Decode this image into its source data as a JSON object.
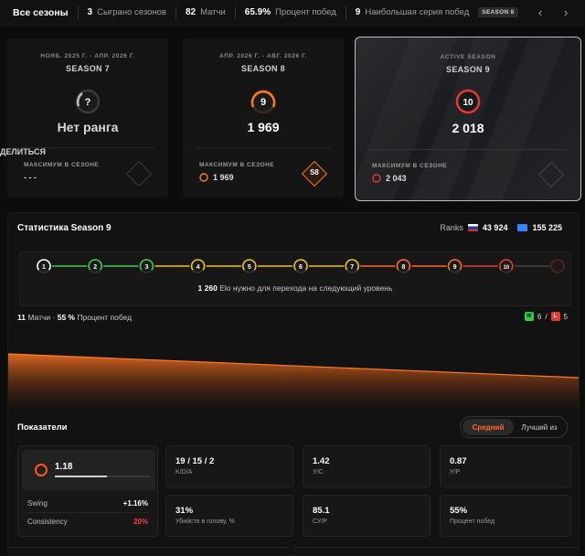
{
  "topbar": {
    "all_seasons": "Все сезоны",
    "stats": [
      {
        "value": "3",
        "label": "Сыграно сезонов"
      },
      {
        "value": "82",
        "label": "Матчи"
      },
      {
        "value": "65.9%",
        "label": "Процент побед"
      },
      {
        "value": "9",
        "label": "Наибольшая серия побед"
      }
    ],
    "season_badge": "SEASON 8",
    "prev_icon": "chevron-left-icon",
    "next_icon": "chevron-right-icon"
  },
  "share_label": "ДЕЛИТЬСЯ",
  "seasons": [
    {
      "dates": "НОЯБ. 2025 Г. - АПР. 2026 Г.",
      "name": "SEASON 7",
      "level": "?",
      "elo": "",
      "no_rank": "Нет ранга",
      "max_label": "МАКСИМУМ В СЕЗОНЕ",
      "max_value": "- - -",
      "color": "#bdbdbd"
    },
    {
      "dates": "АПР. 2026 Г. - АВГ. 2026 Г.",
      "name": "SEASON 8",
      "level": "9",
      "elo": "1 969",
      "max_label": "МАКСИМУМ В СЕЗОНЕ",
      "max_level": "9",
      "max_value": "1 969",
      "color": "#ff7a1a",
      "badge": "S8"
    },
    {
      "tag": "ACTIVE SEASON",
      "name": "SEASON 9",
      "level": "10",
      "elo": "2 018",
      "max_label": "МАКСИМУМ В СЕЗОНЕ",
      "max_level": "10",
      "max_value": "2 043",
      "color": "#e53935"
    }
  ],
  "panel": {
    "title": "Статистика Season 9",
    "ranks_label": "Ranks",
    "rank_country": "43 924",
    "rank_world": "155 225",
    "levels": [
      "1",
      "2",
      "3",
      "4",
      "5",
      "6",
      "7",
      "8",
      "9",
      "10"
    ],
    "elo_needed_value": "1 260",
    "elo_needed_text": "Elo нужно для перехода на следующий уровень",
    "matches_value": "11",
    "matches_label": "Матчи",
    "winrate_value": "55 %",
    "winrate_label": "Процент побед",
    "wins_badge": "W",
    "wins": "6",
    "losses_badge": "L",
    "losses": "5"
  },
  "kpi": {
    "title": "Показатели",
    "toggle_avg": "Средний",
    "toggle_best": "Лучший из",
    "rating": "1.18",
    "rating_fill": 0.55,
    "swing_label": "Swing",
    "swing_value": "+1.16%",
    "consistency_label": "Consistency",
    "consistency_value": "20%",
    "tiles": [
      {
        "value": "19 / 15 / 2",
        "label": "K/D/A"
      },
      {
        "value": "1.42",
        "label": "У/С"
      },
      {
        "value": "0.87",
        "label": "У/Р"
      },
      {
        "value": "31%",
        "label": "Убийств в голову, %"
      },
      {
        "value": "85.1",
        "label": "СУ/Р"
      },
      {
        "value": "55%",
        "label": "Процент побед"
      }
    ]
  },
  "colors": {
    "accent": "#ff6a2a",
    "green": "#36d14a",
    "yellow": "#f2c318",
    "orange": "#ff6a1a",
    "red": "#e53935"
  }
}
